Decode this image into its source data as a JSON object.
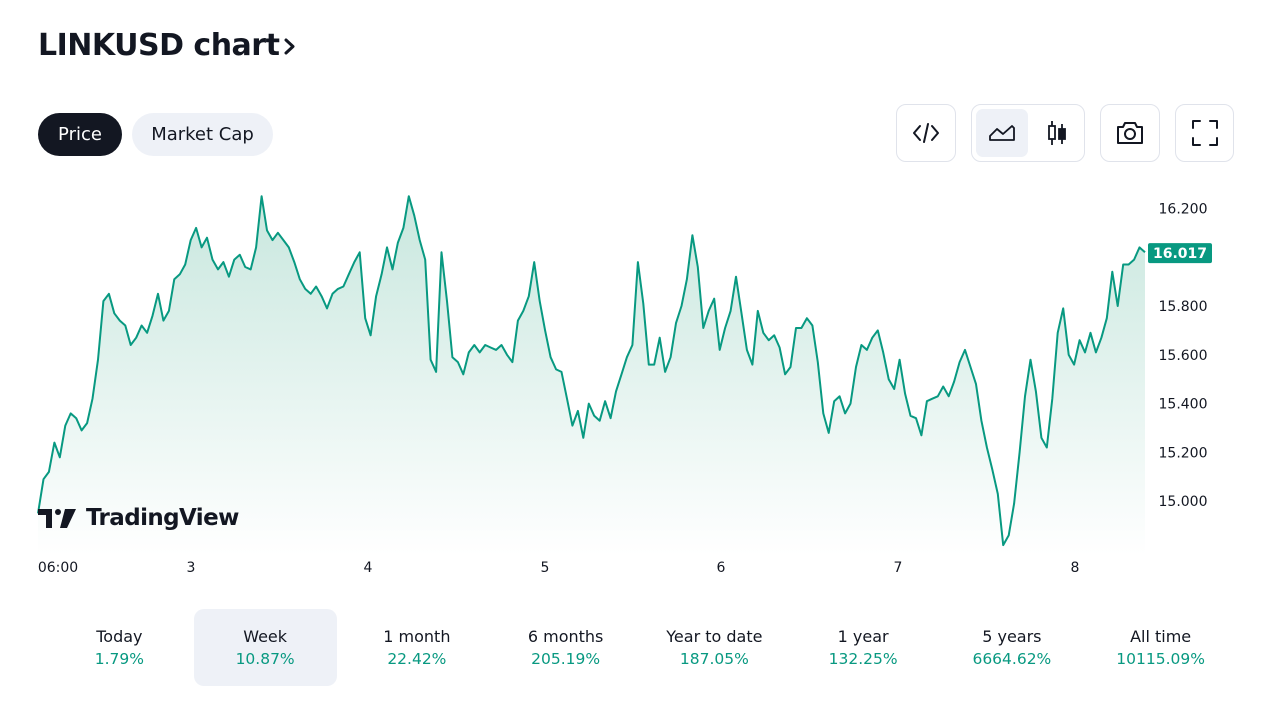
{
  "header": {
    "title": "LINKUSD chart"
  },
  "tabs": [
    {
      "label": "Price",
      "active": true
    },
    {
      "label": "Market Cap",
      "active": false
    }
  ],
  "toolbar": {
    "embed_icon": "code-brackets-icon",
    "line_chart_icon": "area-chart-icon",
    "candle_chart_icon": "candlestick-icon",
    "snapshot_icon": "camera-icon",
    "fullscreen_icon": "fullscreen-icon",
    "selected_chart_style": "area"
  },
  "colors": {
    "line": "#089981",
    "area_top": "#c8e7de",
    "area_bottom": "#ffffff",
    "text": "#131722",
    "axis_text": "#131722",
    "positive": "#089981",
    "active_tab": "#131722",
    "tab_bg": "#eef1f7"
  },
  "chart_data": {
    "type": "area",
    "series": [
      {
        "values": [
          14.95,
          15.09,
          15.12,
          15.24,
          15.18,
          15.31,
          15.36,
          15.34,
          15.29,
          15.32,
          15.42,
          15.58,
          15.82,
          15.85,
          15.77,
          15.74,
          15.72,
          15.64,
          15.67,
          15.72,
          15.69,
          15.76,
          15.85,
          15.74,
          15.78,
          15.91,
          15.93,
          15.97,
          16.07,
          16.12,
          16.04,
          16.08,
          15.99,
          15.95,
          15.98,
          15.92,
          15.99,
          16.01,
          15.96,
          15.95,
          16.04,
          16.25,
          16.11,
          16.07,
          16.1,
          16.07,
          16.04,
          15.98,
          15.91,
          15.87,
          15.85,
          15.88,
          15.84,
          15.79,
          15.85,
          15.87,
          15.88,
          15.93,
          15.98,
          16.02,
          15.75,
          15.68,
          15.84,
          15.93,
          16.04,
          15.95,
          16.06,
          16.12,
          16.25,
          16.17,
          16.07,
          15.99,
          15.58,
          15.53,
          16.02,
          15.82,
          15.59,
          15.57,
          15.52,
          15.61,
          15.64,
          15.61,
          15.64,
          15.63,
          15.62,
          15.64,
          15.6,
          15.57,
          15.74,
          15.78,
          15.84,
          15.98,
          15.82,
          15.7,
          15.59,
          15.54,
          15.53,
          15.42,
          15.31,
          15.37,
          15.26,
          15.4,
          15.35,
          15.33,
          15.41,
          15.34,
          15.45,
          15.52,
          15.59,
          15.64,
          15.98,
          15.81,
          15.56,
          15.56,
          15.67,
          15.53,
          15.59,
          15.73,
          15.8,
          15.91,
          16.09,
          15.96,
          15.71,
          15.78,
          15.83,
          15.62,
          15.71,
          15.78,
          15.92,
          15.77,
          15.62,
          15.56,
          15.78,
          15.69,
          15.66,
          15.68,
          15.63,
          15.52,
          15.55,
          15.71,
          15.71,
          15.75,
          15.72,
          15.57,
          15.36,
          15.28,
          15.41,
          15.43,
          15.36,
          15.4,
          15.55,
          15.64,
          15.62,
          15.67,
          15.7,
          15.61,
          15.5,
          15.46,
          15.58,
          15.44,
          15.35,
          15.34,
          15.27,
          15.41,
          15.42,
          15.43,
          15.47,
          15.43,
          15.49,
          15.57,
          15.62,
          15.55,
          15.48,
          15.33,
          15.22,
          15.13,
          15.03,
          14.82,
          14.86,
          14.99,
          15.2,
          15.43,
          15.58,
          15.45,
          15.26,
          15.22,
          15.42,
          15.69,
          15.79,
          15.6,
          15.56,
          15.66,
          15.61,
          15.69,
          15.61,
          15.67,
          15.75,
          15.94,
          15.8,
          15.97,
          15.97,
          15.99,
          16.04,
          16.02
        ]
      }
    ],
    "y_ticks": [
      "16.200",
      "15.800",
      "15.600",
      "15.400",
      "15.200",
      "15.000"
    ],
    "x_ticks": [
      "06:00",
      "3",
      "4",
      "5",
      "6",
      "7",
      "8"
    ],
    "ylim": [
      14.8,
      16.3
    ],
    "last_value": "16.017",
    "grid": false
  },
  "watermark": {
    "text": "TradingView"
  },
  "periods": [
    {
      "label": "Today",
      "change": "1.79%",
      "active": false
    },
    {
      "label": "Week",
      "change": "10.87%",
      "active": true
    },
    {
      "label": "1 month",
      "change": "22.42%",
      "active": false
    },
    {
      "label": "6 months",
      "change": "205.19%",
      "active": false
    },
    {
      "label": "Year to date",
      "change": "187.05%",
      "active": false
    },
    {
      "label": "1 year",
      "change": "132.25%",
      "active": false
    },
    {
      "label": "5 years",
      "change": "6664.62%",
      "active": false
    },
    {
      "label": "All time",
      "change": "10115.09%",
      "active": false
    }
  ]
}
